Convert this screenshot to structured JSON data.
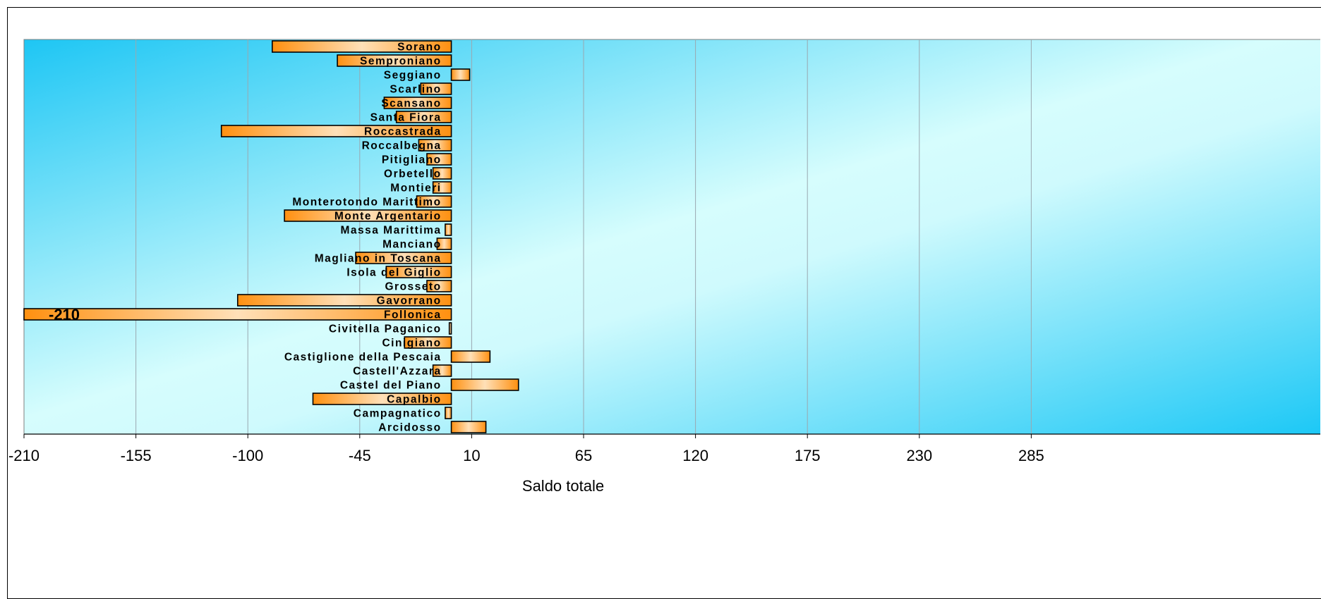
{
  "chart_data": {
    "type": "bar",
    "orientation": "horizontal",
    "xlabel": "Saldo totale",
    "ylabel": "",
    "xlim": [
      -210,
      320
    ],
    "x_ticks": [
      -210,
      -155,
      -100,
      -45,
      10,
      65,
      120,
      175,
      230,
      285
    ],
    "x_tick_labels": [
      "-210",
      "-155",
      "-100",
      "-45",
      "10",
      "65",
      "120",
      "175",
      "230",
      "285"
    ],
    "grid": "vertical",
    "legend": "none",
    "colors": {
      "bar": "#ff9a1a",
      "bar_highlight": "#ffd9a8",
      "bar_border": "#000000",
      "plot_bg_dark": "#1ec8f5",
      "plot_bg_light": "#d6fdfd",
      "grid": "#9aa8b0"
    },
    "categories": [
      "Sorano",
      "Semproniano",
      "Seggiano",
      "Scarlino",
      "Scansano",
      "Santa Fiora",
      "Roccastrada",
      "Roccalbegna",
      "Pitigliano",
      "Orbetello",
      "Montieri",
      "Monterotondo Marittimo",
      "Monte Argentario",
      "Massa Marittima",
      "Manciano",
      "Magliano in Toscana",
      "Isola del Giglio",
      "Grosseto",
      "Gavorrano",
      "Follonica",
      "Civitella Paganico",
      "Cinigiano",
      "Castiglione della Pescaia",
      "Castell'Azzara",
      "Castel del Piano",
      "Capalbio",
      "Campagnatico",
      "Arcidosso"
    ],
    "values": [
      -88,
      -56,
      9,
      -15,
      -33,
      -27,
      -113,
      -16,
      -12,
      -9,
      -9,
      -17,
      -82,
      -3,
      -7,
      -47,
      -32,
      -12,
      -105,
      -210,
      -1,
      -23,
      19,
      -9,
      33,
      -68,
      -3,
      17
    ],
    "data_labels": [
      {
        "category": "Follonica",
        "text": "-210"
      }
    ]
  }
}
